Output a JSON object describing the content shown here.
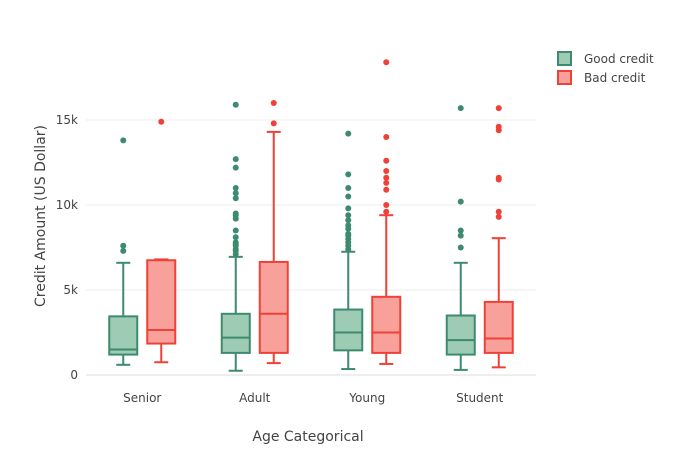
{
  "chart_data": {
    "type": "box",
    "title": "",
    "xlabel": "Age Categorical",
    "ylabel": "Credit Amount (US Dollar)",
    "categories": [
      "Senior",
      "Adult",
      "Young",
      "Student"
    ],
    "ylim": [
      -700,
      19000
    ],
    "yticks": [
      0,
      5000,
      10000,
      15000
    ],
    "ytick_labels": [
      "0",
      "5k",
      "10k",
      "15k"
    ],
    "grid": true,
    "legend_position": "top-right",
    "colors": {
      "good_stroke": "#3d8b6e",
      "good_fill": "#9dcbb4",
      "bad_stroke": "#ef4137",
      "bad_fill": "#f7a19a"
    },
    "series": [
      {
        "name": "Good credit",
        "boxes": [
          {
            "min": 600,
            "q1": 1200,
            "median": 1500,
            "q3": 3450,
            "max": 6600,
            "outliers": [
              7300,
              7600,
              13800
            ]
          },
          {
            "min": 250,
            "q1": 1300,
            "median": 2200,
            "q3": 3600,
            "max": 6950,
            "outliers": [
              7100,
              7300,
              7400,
              7600,
              7700,
              7800,
              8100,
              8500,
              9200,
              9400,
              9500,
              10400,
              10700,
              11000,
              12200,
              12700,
              15900
            ]
          },
          {
            "min": 350,
            "q1": 1450,
            "median": 2500,
            "q3": 3850,
            "max": 7250,
            "outliers": [
              7400,
              7600,
              7800,
              8000,
              8200,
              8300,
              8600,
              8800,
              9100,
              9400,
              9800,
              10500,
              11000,
              11800,
              14200
            ]
          },
          {
            "min": 300,
            "q1": 1200,
            "median": 2050,
            "q3": 3500,
            "max": 6600,
            "outliers": [
              7500,
              8200,
              8500,
              10200,
              15700
            ]
          }
        ]
      },
      {
        "name": "Bad credit",
        "boxes": [
          {
            "min": 750,
            "q1": 1850,
            "median": 2650,
            "q3": 6750,
            "max": 6800,
            "outliers": [
              14900
            ]
          },
          {
            "min": 700,
            "q1": 1300,
            "median": 3600,
            "q3": 6650,
            "max": 14300,
            "outliers": [
              14800,
              16000
            ]
          },
          {
            "min": 650,
            "q1": 1300,
            "median": 2500,
            "q3": 4600,
            "max": 9400,
            "outliers": [
              9600,
              10000,
              10900,
              11300,
              11600,
              12000,
              12600,
              14000,
              18400
            ]
          },
          {
            "min": 450,
            "q1": 1300,
            "median": 2150,
            "q3": 4300,
            "max": 8050,
            "outliers": [
              9300,
              9600,
              11500,
              11600,
              14400,
              14600,
              15700
            ]
          }
        ]
      }
    ]
  }
}
